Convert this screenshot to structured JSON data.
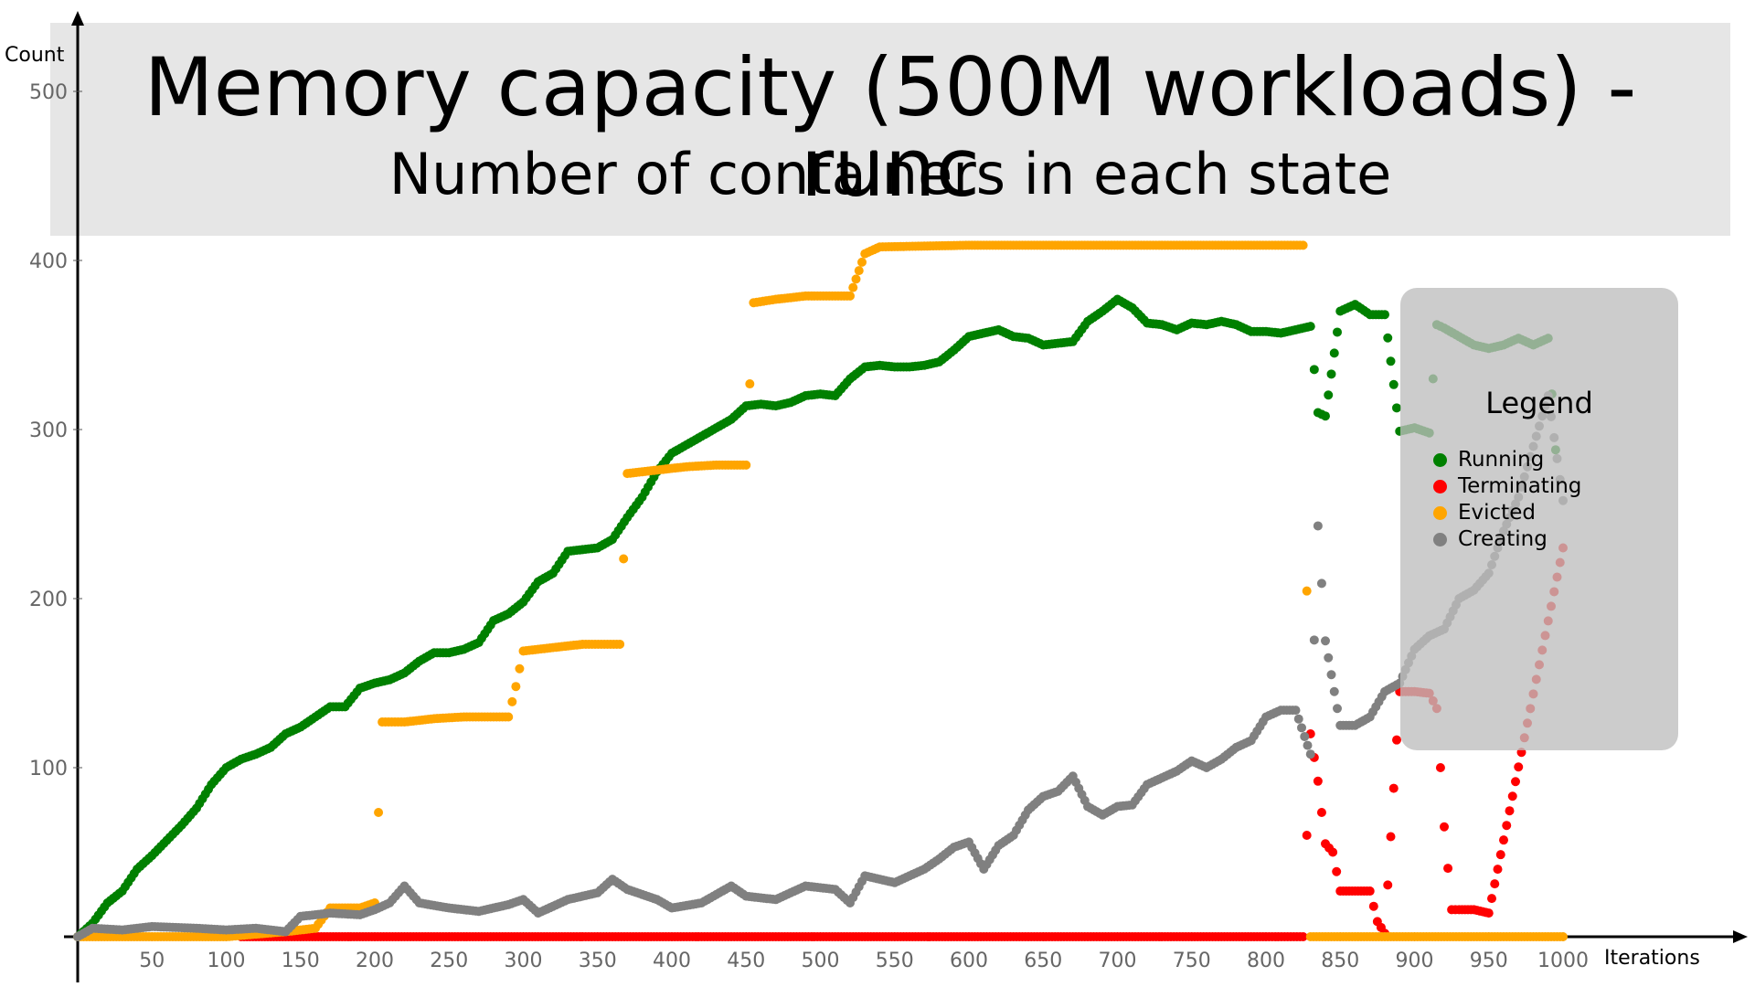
{
  "chart_data": {
    "type": "scatter",
    "title": "Memory capacity (500M workloads) - runc",
    "subtitle": "Number of containers in each state",
    "xlabel": "Iterations",
    "ylabel": "Count",
    "xlim": [
      0,
      1000
    ],
    "ylim": [
      0,
      520
    ],
    "x_ticks": [
      50,
      100,
      150,
      200,
      250,
      300,
      350,
      400,
      450,
      500,
      550,
      600,
      650,
      700,
      750,
      800,
      850,
      900,
      950,
      1000
    ],
    "y_ticks": [
      100,
      200,
      300,
      400,
      500
    ],
    "grid": false,
    "legend": {
      "title": "Legend",
      "placement": "right"
    },
    "series": [
      {
        "name": "Running",
        "color": "#008000",
        "points": [
          [
            0,
            0
          ],
          [
            10,
            8
          ],
          [
            20,
            20
          ],
          [
            30,
            27
          ],
          [
            40,
            40
          ],
          [
            50,
            48
          ],
          [
            60,
            57
          ],
          [
            70,
            66
          ],
          [
            80,
            76
          ],
          [
            90,
            90
          ],
          [
            100,
            100
          ],
          [
            110,
            105
          ],
          [
            120,
            108
          ],
          [
            130,
            112
          ],
          [
            140,
            120
          ],
          [
            150,
            124
          ],
          [
            160,
            130
          ],
          [
            170,
            136
          ],
          [
            180,
            136
          ],
          [
            190,
            147
          ],
          [
            200,
            150
          ],
          [
            210,
            152
          ],
          [
            220,
            156
          ],
          [
            230,
            163
          ],
          [
            240,
            168
          ],
          [
            250,
            168
          ],
          [
            260,
            170
          ],
          [
            270,
            174
          ],
          [
            280,
            187
          ],
          [
            290,
            191
          ],
          [
            300,
            198
          ],
          [
            310,
            210
          ],
          [
            320,
            215
          ],
          [
            330,
            228
          ],
          [
            340,
            229
          ],
          [
            350,
            230
          ],
          [
            360,
            235
          ],
          [
            370,
            248
          ],
          [
            380,
            260
          ],
          [
            390,
            275
          ],
          [
            400,
            286
          ],
          [
            410,
            291
          ],
          [
            420,
            296
          ],
          [
            430,
            301
          ],
          [
            440,
            306
          ],
          [
            450,
            314
          ],
          [
            460,
            315
          ],
          [
            470,
            314
          ],
          [
            480,
            316
          ],
          [
            490,
            320
          ],
          [
            500,
            321
          ],
          [
            510,
            320
          ],
          [
            520,
            330
          ],
          [
            530,
            337
          ],
          [
            540,
            338
          ],
          [
            550,
            337
          ],
          [
            560,
            337
          ],
          [
            570,
            338
          ],
          [
            580,
            340
          ],
          [
            590,
            347
          ],
          [
            600,
            355
          ],
          [
            610,
            357
          ],
          [
            620,
            359
          ],
          [
            630,
            355
          ],
          [
            640,
            354
          ],
          [
            650,
            350
          ],
          [
            660,
            351
          ],
          [
            670,
            352
          ],
          [
            680,
            364
          ],
          [
            690,
            370
          ],
          [
            700,
            377
          ],
          [
            710,
            372
          ],
          [
            720,
            363
          ],
          [
            730,
            362
          ],
          [
            740,
            359
          ],
          [
            750,
            363
          ],
          [
            760,
            362
          ],
          [
            770,
            364
          ],
          [
            780,
            362
          ],
          [
            790,
            358
          ],
          [
            800,
            358
          ],
          [
            810,
            357
          ],
          [
            820,
            359
          ],
          [
            830,
            361
          ],
          [
            835,
            310
          ],
          [
            840,
            308
          ],
          [
            850,
            370
          ],
          [
            860,
            374
          ],
          [
            870,
            368
          ],
          [
            880,
            368
          ],
          [
            890,
            299
          ],
          [
            900,
            301
          ],
          [
            910,
            298
          ],
          [
            915,
            362
          ],
          [
            920,
            360
          ],
          [
            930,
            355
          ],
          [
            940,
            350
          ],
          [
            950,
            348
          ],
          [
            960,
            350
          ],
          [
            970,
            354
          ],
          [
            980,
            350
          ],
          [
            990,
            354
          ],
          [
            995,
            288
          ]
        ]
      },
      {
        "name": "Terminating",
        "color": "#ff0000",
        "points": [
          [
            110,
            0
          ],
          [
            200,
            0
          ],
          [
            300,
            0
          ],
          [
            400,
            0
          ],
          [
            500,
            0
          ],
          [
            600,
            0
          ],
          [
            700,
            0
          ],
          [
            800,
            0
          ],
          [
            825,
            0
          ],
          [
            830,
            120
          ],
          [
            835,
            92
          ],
          [
            840,
            55
          ],
          [
            845,
            50
          ],
          [
            850,
            27
          ],
          [
            860,
            27
          ],
          [
            870,
            27
          ],
          [
            875,
            9
          ],
          [
            880,
            2
          ],
          [
            890,
            145
          ],
          [
            900,
            145
          ],
          [
            910,
            144
          ],
          [
            915,
            135
          ],
          [
            920,
            65
          ],
          [
            925,
            16
          ],
          [
            930,
            16
          ],
          [
            940,
            16
          ],
          [
            950,
            14
          ],
          [
            1000,
            230
          ]
        ]
      },
      {
        "name": "Evicted",
        "color": "#ffa500",
        "points": [
          [
            0,
            0
          ],
          [
            50,
            0
          ],
          [
            100,
            0
          ],
          [
            140,
            3
          ],
          [
            160,
            5
          ],
          [
            170,
            17
          ],
          [
            190,
            17
          ],
          [
            200,
            20
          ],
          [
            205,
            127
          ],
          [
            220,
            127
          ],
          [
            240,
            129
          ],
          [
            260,
            130
          ],
          [
            290,
            130
          ],
          [
            295,
            148
          ],
          [
            300,
            169
          ],
          [
            320,
            171
          ],
          [
            340,
            173
          ],
          [
            365,
            173
          ],
          [
            370,
            274
          ],
          [
            390,
            276
          ],
          [
            410,
            278
          ],
          [
            430,
            279
          ],
          [
            450,
            279
          ],
          [
            455,
            375
          ],
          [
            470,
            377
          ],
          [
            490,
            379
          ],
          [
            520,
            379
          ],
          [
            530,
            404
          ],
          [
            540,
            408
          ],
          [
            600,
            409
          ],
          [
            700,
            409
          ],
          [
            800,
            409
          ],
          [
            825,
            409
          ],
          [
            830,
            0
          ],
          [
            880,
            0
          ],
          [
            900,
            0
          ],
          [
            950,
            0
          ],
          [
            1000,
            0
          ]
        ]
      },
      {
        "name": "Creating",
        "color": "#808080",
        "points": [
          [
            0,
            0
          ],
          [
            10,
            5
          ],
          [
            30,
            4
          ],
          [
            50,
            6
          ],
          [
            80,
            5
          ],
          [
            100,
            4
          ],
          [
            120,
            5
          ],
          [
            140,
            3
          ],
          [
            150,
            12
          ],
          [
            170,
            14
          ],
          [
            190,
            13
          ],
          [
            200,
            16
          ],
          [
            210,
            20
          ],
          [
            220,
            30
          ],
          [
            230,
            20
          ],
          [
            250,
            17
          ],
          [
            270,
            15
          ],
          [
            290,
            19
          ],
          [
            300,
            22
          ],
          [
            310,
            14
          ],
          [
            330,
            22
          ],
          [
            350,
            26
          ],
          [
            360,
            34
          ],
          [
            370,
            28
          ],
          [
            390,
            22
          ],
          [
            400,
            17
          ],
          [
            420,
            20
          ],
          [
            440,
            30
          ],
          [
            450,
            24
          ],
          [
            470,
            22
          ],
          [
            490,
            30
          ],
          [
            510,
            28
          ],
          [
            520,
            20
          ],
          [
            530,
            36
          ],
          [
            550,
            32
          ],
          [
            570,
            40
          ],
          [
            580,
            46
          ],
          [
            590,
            53
          ],
          [
            600,
            56
          ],
          [
            610,
            40
          ],
          [
            620,
            54
          ],
          [
            630,
            60
          ],
          [
            640,
            75
          ],
          [
            650,
            83
          ],
          [
            660,
            86
          ],
          [
            670,
            95
          ],
          [
            680,
            77
          ],
          [
            690,
            72
          ],
          [
            700,
            77
          ],
          [
            710,
            78
          ],
          [
            720,
            90
          ],
          [
            740,
            98
          ],
          [
            750,
            104
          ],
          [
            760,
            100
          ],
          [
            770,
            105
          ],
          [
            780,
            112
          ],
          [
            790,
            116
          ],
          [
            800,
            130
          ],
          [
            810,
            134
          ],
          [
            820,
            134
          ],
          [
            830,
            108
          ],
          [
            835,
            243
          ],
          [
            840,
            175
          ],
          [
            850,
            125
          ],
          [
            860,
            125
          ],
          [
            870,
            130
          ],
          [
            880,
            145
          ],
          [
            890,
            150
          ],
          [
            900,
            170
          ],
          [
            910,
            178
          ],
          [
            920,
            182
          ],
          [
            930,
            200
          ],
          [
            940,
            205
          ],
          [
            950,
            215
          ],
          [
            960,
            240
          ],
          [
            970,
            260
          ],
          [
            980,
            290
          ],
          [
            990,
            320
          ],
          [
            1000,
            258
          ]
        ]
      }
    ]
  }
}
